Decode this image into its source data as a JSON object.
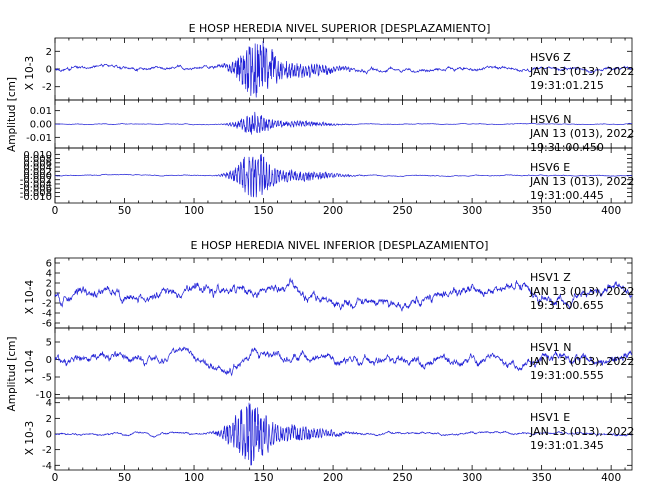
{
  "chart_data": [
    {
      "type": "line",
      "title": "E HOSP HEREDIA NIVEL SUPERIOR [DESPLAZAMIENTO]",
      "ylabel": "Amplitud [cm]",
      "xlim": [
        0,
        415
      ],
      "x_ticks": [
        "0",
        "50",
        "100",
        "150",
        "200",
        "250",
        "300",
        "350",
        "400"
      ],
      "line_color": "#1f1fd6",
      "panels": [
        {
          "station": "HSV6",
          "component": "Z",
          "date": "JAN 13 (013), 2022",
          "time": "19:31:01.215",
          "scale_label": "X 10-3",
          "ylim": [
            -3.5,
            3.5
          ],
          "y_ticks": [
            "2",
            "0",
            "-2"
          ],
          "y_tick_values": [
            2,
            0,
            -2
          ],
          "noise_amplitude": 0.5,
          "burst": {
            "center": 145,
            "width": 14,
            "peak": 3.3
          },
          "seed": 11
        },
        {
          "station": "HSV6",
          "component": "N",
          "date": "JAN 13 (013), 2022",
          "time": "19:31:00.450",
          "scale_label": "",
          "ylim": [
            -0.018,
            0.018
          ],
          "y_ticks": [
            "0.01",
            "0.00",
            "-0.01"
          ],
          "y_tick_values": [
            0.01,
            0,
            -0.01
          ],
          "noise_amplitude": 0.0006,
          "burst": {
            "center": 143,
            "width": 12,
            "peak": 0.009
          },
          "seed": 23
        },
        {
          "station": "HSV6",
          "component": "E",
          "date": "JAN 13 (013), 2022",
          "time": "19:31:00.445",
          "scale_label": "",
          "ylim": [
            -0.013,
            0.013
          ],
          "y_ticks": [
            "0.010",
            "0.008",
            "0.006",
            "0.004",
            "0.002",
            "0.000",
            "-0.002",
            "-0.004",
            "-0.006",
            "-0.008",
            "-0.010"
          ],
          "y_tick_values": [
            0.01,
            0.008,
            0.006,
            0.004,
            0.002,
            0.0,
            -0.002,
            -0.004,
            -0.006,
            -0.008,
            -0.01
          ],
          "noise_amplitude": 0.0005,
          "burst": {
            "center": 143,
            "width": 13,
            "peak": 0.011
          },
          "seed": 37
        }
      ]
    },
    {
      "type": "line",
      "title": "E HOSP HEREDIA NIVEL INFERIOR [DESPLAZAMIENTO]",
      "ylabel": "Amplitud [cm]",
      "xlim": [
        0,
        415
      ],
      "x_ticks": [
        "0",
        "50",
        "100",
        "150",
        "200",
        "250",
        "300",
        "350",
        "400"
      ],
      "line_color": "#1f1fd6",
      "panels": [
        {
          "station": "HSV1",
          "component": "Z",
          "date": "JAN 13 (013), 2022",
          "time": "19:31:00.655",
          "scale_label": "X 10-4",
          "ylim": [
            -7,
            7
          ],
          "y_ticks": [
            "6",
            "4",
            "2",
            "0",
            "-2",
            "-4",
            "-6"
          ],
          "y_tick_values": [
            6,
            4,
            2,
            0,
            -2,
            -4,
            -6
          ],
          "noise_amplitude": 2.6,
          "burst": {
            "center": 145,
            "width": 10,
            "peak": 0
          },
          "seed": 53
        },
        {
          "station": "HSV1",
          "component": "N",
          "date": "JAN 13 (013), 2022",
          "time": "19:31:00.555",
          "scale_label": "X 10-4",
          "ylim": [
            -11,
            9
          ],
          "y_ticks": [
            "5",
            "0",
            "-5",
            "-10"
          ],
          "y_tick_values": [
            5,
            0,
            -5,
            -10
          ],
          "noise_amplitude": 3.2,
          "burst": {
            "center": 145,
            "width": 10,
            "peak": 0
          },
          "seed": 71
        },
        {
          "station": "HSV1",
          "component": "E",
          "date": "JAN 13 (013), 2022",
          "time": "19:31:01.345",
          "scale_label": "X 10-3",
          "ylim": [
            -4.6,
            4.6
          ],
          "y_ticks": [
            "4",
            "2",
            "0",
            "-2",
            "-4"
          ],
          "y_tick_values": [
            4,
            2,
            0,
            -2,
            -4
          ],
          "noise_amplitude": 0.35,
          "burst": {
            "center": 140,
            "width": 14,
            "peak": 4.1
          },
          "seed": 89
        }
      ]
    }
  ]
}
